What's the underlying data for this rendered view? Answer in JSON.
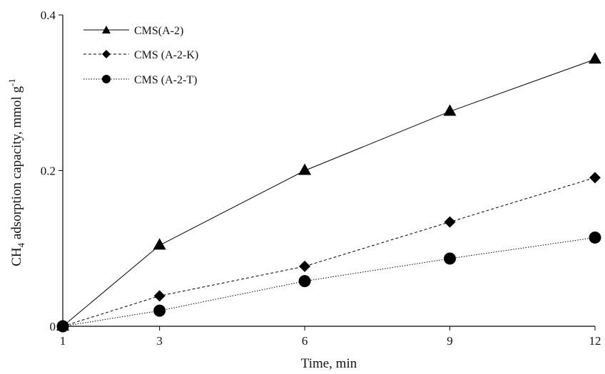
{
  "chart_data": {
    "type": "line",
    "title": "",
    "xlabel": "Time, min",
    "ylabel": {
      "prefix": "CH",
      "subscript": "4",
      "middle": " adsorption capacity, mmol g",
      "superscript": "-1"
    },
    "xlim": [
      1,
      12
    ],
    "ylim": [
      0,
      0.4
    ],
    "x_ticks": [
      "1",
      "3",
      "6",
      "9",
      "12"
    ],
    "x_tick_values": [
      1,
      3,
      6,
      9,
      12
    ],
    "y_ticks": [
      "0",
      "0.2",
      "0.4"
    ],
    "y_tick_values": [
      0,
      0.2,
      0.4
    ],
    "grid": false,
    "legend_position": "top-left",
    "series": [
      {
        "name": "CMS(A-2)",
        "marker": "triangle",
        "line_style": "solid",
        "color": "#000000",
        "x": [
          1,
          3,
          6,
          9,
          12
        ],
        "y": [
          0,
          0.104,
          0.2,
          0.276,
          0.343
        ]
      },
      {
        "name": "CMS (A-2-K)",
        "marker": "diamond",
        "line_style": "dashed",
        "color": "#000000",
        "x": [
          1,
          3,
          6,
          9,
          12
        ],
        "y": [
          0,
          0.039,
          0.077,
          0.134,
          0.191
        ]
      },
      {
        "name": "CMS (A-2-T)",
        "marker": "circle",
        "line_style": "dotted",
        "color": "#000000",
        "x": [
          1,
          3,
          6,
          9,
          12
        ],
        "y": [
          0,
          0.02,
          0.058,
          0.087,
          0.114
        ]
      }
    ]
  }
}
